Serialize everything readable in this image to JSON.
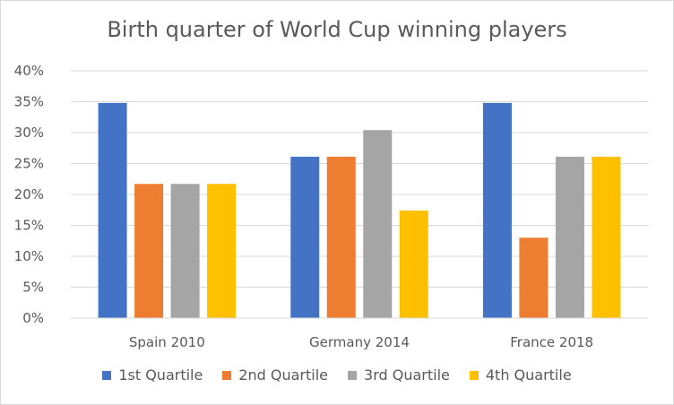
{
  "chart_data": {
    "type": "bar",
    "title": "Birth quarter of World Cup winning players",
    "categories": [
      "Spain 2010",
      "Germany 2014",
      "France 2018"
    ],
    "series": [
      {
        "name": "1st Quartile",
        "color": "#4472c4",
        "values": [
          34.8,
          26.1,
          34.8
        ]
      },
      {
        "name": "2nd Quartile",
        "color": "#ed7d31",
        "values": [
          21.7,
          26.1,
          13.0
        ]
      },
      {
        "name": "3rd Quartile",
        "color": "#a5a5a5",
        "values": [
          21.7,
          30.4,
          26.1
        ]
      },
      {
        "name": "4th Quartile",
        "color": "#ffc000",
        "values": [
          21.7,
          17.4,
          26.1
        ]
      }
    ],
    "y_ticks": [
      "0%",
      "5%",
      "10%",
      "15%",
      "20%",
      "25%",
      "30%",
      "35%",
      "40%"
    ],
    "ylim": [
      0,
      40
    ],
    "grid": true,
    "legend_position": "bottom"
  }
}
